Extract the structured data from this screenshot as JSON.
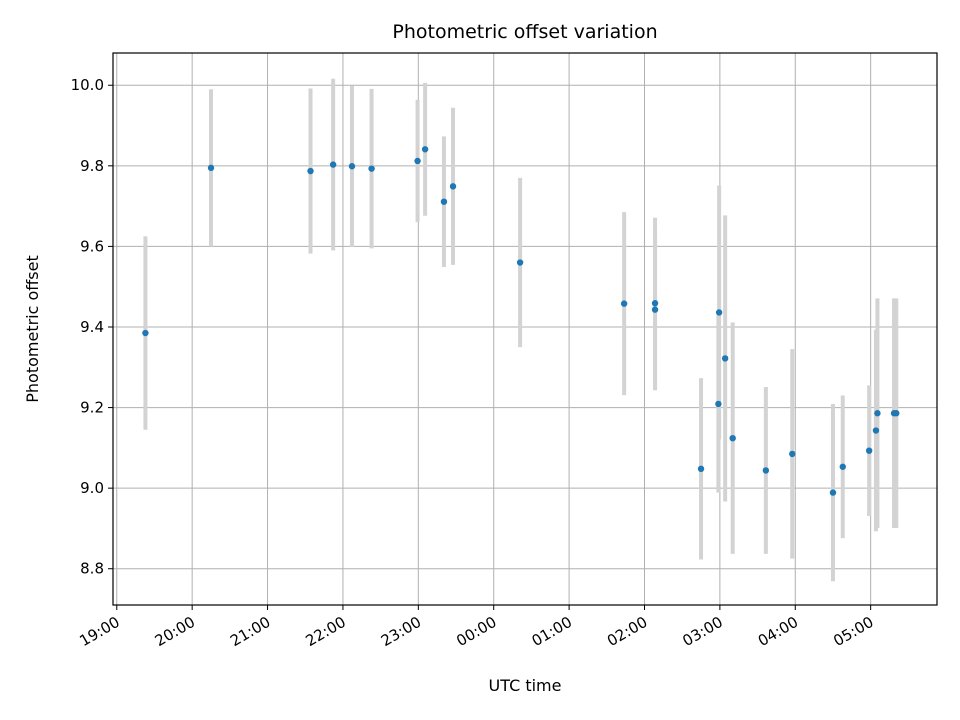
{
  "chart_data": {
    "type": "scatter",
    "title": "Photometric offset variation",
    "xlabel": "UTC time",
    "ylabel": "Photometric offset",
    "x_unit": "hours",
    "xlim": [
      -0.05,
      10.88
    ],
    "ylim": [
      8.71,
      10.08
    ],
    "x_ticks": [
      {
        "value": 0,
        "label": "19:00"
      },
      {
        "value": 1,
        "label": "20:00"
      },
      {
        "value": 2,
        "label": "21:00"
      },
      {
        "value": 3,
        "label": "22:00"
      },
      {
        "value": 4,
        "label": "23:00"
      },
      {
        "value": 5,
        "label": "00:00"
      },
      {
        "value": 6,
        "label": "01:00"
      },
      {
        "value": 7,
        "label": "02:00"
      },
      {
        "value": 8,
        "label": "03:00"
      },
      {
        "value": 9,
        "label": "04:00"
      },
      {
        "value": 10,
        "label": "05:00"
      }
    ],
    "y_ticks": [
      {
        "value": 8.8,
        "label": "8.8"
      },
      {
        "value": 9.0,
        "label": "9.0"
      },
      {
        "value": 9.2,
        "label": "9.2"
      },
      {
        "value": 9.4,
        "label": "9.4"
      },
      {
        "value": 9.6,
        "label": "9.6"
      },
      {
        "value": 9.8,
        "label": "9.8"
      },
      {
        "value": 10.0,
        "label": "10.0"
      }
    ],
    "grid": true,
    "point_color": "#1f77b4",
    "errorbar_color": "#d3d3d3",
    "points": [
      {
        "x": 0.38,
        "y": 9.385,
        "err": 0.24
      },
      {
        "x": 1.25,
        "y": 9.795,
        "err": 0.195
      },
      {
        "x": 2.57,
        "y": 9.787,
        "err": 0.205
      },
      {
        "x": 2.87,
        "y": 9.803,
        "err": 0.213
      },
      {
        "x": 3.12,
        "y": 9.799,
        "err": 0.2
      },
      {
        "x": 3.38,
        "y": 9.793,
        "err": 0.198
      },
      {
        "x": 3.99,
        "y": 9.812,
        "err": 0.152
      },
      {
        "x": 4.09,
        "y": 9.841,
        "err": 0.165
      },
      {
        "x": 4.34,
        "y": 9.711,
        "err": 0.162
      },
      {
        "x": 4.46,
        "y": 9.749,
        "err": 0.195
      },
      {
        "x": 5.35,
        "y": 9.56,
        "err": 0.21
      },
      {
        "x": 6.73,
        "y": 9.458,
        "err": 0.227
      },
      {
        "x": 7.14,
        "y": 9.459,
        "err": 0.212
      },
      {
        "x": 7.14,
        "y": 9.443,
        "err": 0.2
      },
      {
        "x": 7.75,
        "y": 9.048,
        "err": 0.225
      },
      {
        "x": 7.98,
        "y": 9.209,
        "err": 0.22
      },
      {
        "x": 7.99,
        "y": 9.436,
        "err": 0.315
      },
      {
        "x": 8.07,
        "y": 9.322,
        "err": 0.355
      },
      {
        "x": 8.17,
        "y": 9.124,
        "err": 0.287
      },
      {
        "x": 8.61,
        "y": 9.044,
        "err": 0.207
      },
      {
        "x": 8.96,
        "y": 9.085,
        "err": 0.26
      },
      {
        "x": 9.5,
        "y": 8.989,
        "err": 0.22
      },
      {
        "x": 9.63,
        "y": 9.053,
        "err": 0.177
      },
      {
        "x": 9.98,
        "y": 9.093,
        "err": 0.162
      },
      {
        "x": 10.07,
        "y": 9.143,
        "err": 0.25
      },
      {
        "x": 10.09,
        "y": 9.186,
        "err": 0.285
      },
      {
        "x": 10.31,
        "y": 9.186,
        "err": 0.285
      },
      {
        "x": 10.34,
        "y": 9.186,
        "err": 0.285
      }
    ]
  }
}
